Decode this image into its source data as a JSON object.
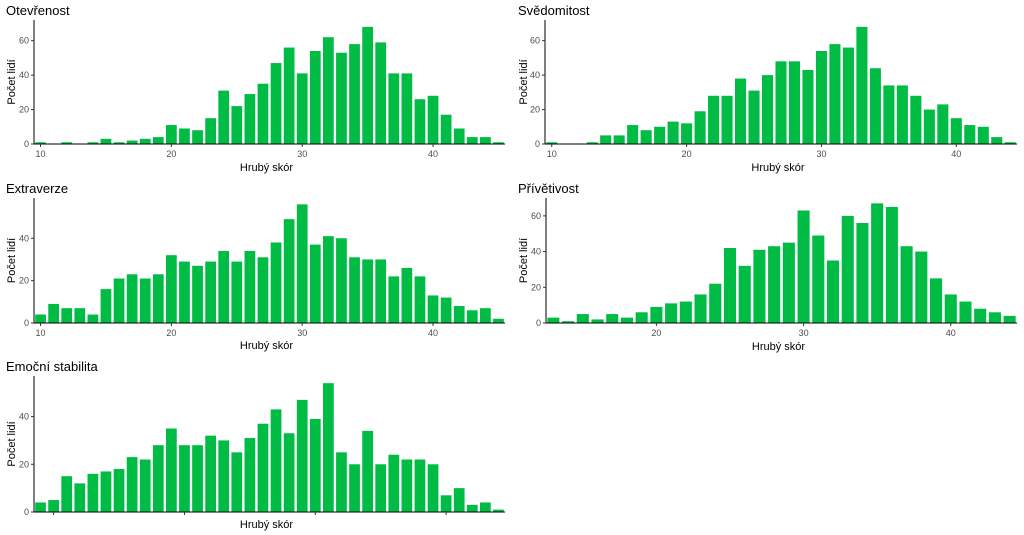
{
  "chart_data": [
    {
      "type": "bar",
      "title": "Otevřenost",
      "xlabel": "Hrubý skór",
      "ylabel": "Počet lidí",
      "x": [
        10,
        11,
        12,
        13,
        14,
        15,
        16,
        17,
        18,
        19,
        20,
        21,
        22,
        23,
        24,
        25,
        26,
        27,
        28,
        29,
        30,
        31,
        32,
        33,
        34,
        35,
        36,
        37,
        38,
        39,
        40,
        41,
        42,
        43,
        44,
        45
      ],
      "values": [
        1,
        0,
        1,
        0,
        1,
        3,
        1,
        2,
        3,
        4,
        11,
        9,
        8,
        15,
        31,
        22,
        29,
        35,
        47,
        56,
        41,
        54,
        62,
        53,
        58,
        68,
        59,
        41,
        41,
        26,
        28,
        17,
        9,
        4,
        4,
        1
      ],
      "xlim": [
        9.5,
        45.5
      ],
      "ylim": [
        0,
        72
      ],
      "xticks": [
        10,
        20,
        30,
        40
      ],
      "yticks": [
        0,
        20,
        40,
        60
      ],
      "grid": false,
      "bar_color": "#00bb44"
    },
    {
      "type": "bar",
      "title": "Svědomitost",
      "xlabel": "Hrubý skór",
      "ylabel": "Počet lidí",
      "x": [
        10,
        11,
        12,
        13,
        14,
        15,
        16,
        17,
        18,
        19,
        20,
        21,
        22,
        23,
        24,
        25,
        26,
        27,
        28,
        29,
        30,
        31,
        32,
        33,
        34,
        35,
        36,
        37,
        38,
        39,
        40,
        41,
        42,
        43,
        44
      ],
      "values": [
        1,
        0,
        0,
        1,
        5,
        5,
        11,
        8,
        10,
        13,
        12,
        19,
        28,
        28,
        38,
        31,
        40,
        48,
        48,
        43,
        54,
        58,
        56,
        68,
        44,
        34,
        34,
        28,
        20,
        23,
        15,
        11,
        10,
        4,
        1
      ],
      "xlim": [
        9.5,
        44.5
      ],
      "ylim": [
        0,
        72
      ],
      "xticks": [
        10,
        20,
        30,
        40
      ],
      "yticks": [
        0,
        20,
        40,
        60
      ],
      "grid": false,
      "bar_color": "#00bb44"
    },
    {
      "type": "bar",
      "title": "Extraverze",
      "xlabel": "Hrubý skór",
      "ylabel": "Počet lidí",
      "x": [
        10,
        11,
        12,
        13,
        14,
        15,
        16,
        17,
        18,
        19,
        20,
        21,
        22,
        23,
        24,
        25,
        26,
        27,
        28,
        29,
        30,
        31,
        32,
        33,
        34,
        35,
        36,
        37,
        38,
        39,
        40,
        41,
        42,
        43,
        44,
        45
      ],
      "values": [
        4,
        9,
        7,
        7,
        4,
        16,
        21,
        23,
        21,
        23,
        32,
        29,
        27,
        29,
        34,
        29,
        34,
        31,
        38,
        49,
        56,
        37,
        41,
        40,
        31,
        30,
        30,
        22,
        26,
        22,
        13,
        12,
        8,
        6,
        7,
        2
      ],
      "xlim": [
        9.5,
        45.5
      ],
      "ylim": [
        0,
        59
      ],
      "xticks": [
        10,
        20,
        30,
        40
      ],
      "yticks": [
        0,
        20,
        40
      ],
      "grid": false,
      "bar_color": "#00bb44"
    },
    {
      "type": "bar",
      "title": "Přívětivost",
      "xlabel": "Hrubý skór",
      "ylabel": "Počet lidí",
      "x": [
        13,
        14,
        15,
        16,
        17,
        18,
        19,
        20,
        21,
        22,
        23,
        24,
        25,
        26,
        27,
        28,
        29,
        30,
        31,
        32,
        33,
        34,
        35,
        36,
        37,
        38,
        39,
        40,
        41,
        42,
        43,
        44
      ],
      "values": [
        3,
        1,
        5,
        2,
        5,
        3,
        6,
        9,
        11,
        12,
        16,
        22,
        42,
        32,
        41,
        43,
        45,
        63,
        49,
        35,
        60,
        56,
        67,
        65,
        43,
        40,
        25,
        16,
        12,
        8,
        6,
        4
      ],
      "xlim": [
        12.5,
        44.5
      ],
      "ylim": [
        0,
        70
      ],
      "xticks": [
        20,
        30,
        40
      ],
      "yticks": [
        0,
        20,
        40,
        60
      ],
      "grid": false,
      "bar_color": "#00bb44"
    },
    {
      "type": "bar",
      "title": "Emoční stabilita",
      "xlabel": "Hrubý skór",
      "ylabel": "Počet lidí",
      "x": [
        9,
        10,
        11,
        12,
        13,
        14,
        15,
        16,
        17,
        18,
        19,
        20,
        21,
        22,
        23,
        24,
        25,
        26,
        27,
        28,
        29,
        30,
        31,
        32,
        33,
        34,
        35,
        36,
        37,
        38,
        39,
        40,
        41,
        42,
        43,
        44
      ],
      "values": [
        4,
        5,
        15,
        12,
        16,
        17,
        18,
        23,
        22,
        28,
        35,
        28,
        28,
        32,
        30,
        25,
        31,
        37,
        43,
        33,
        47,
        39,
        54,
        25,
        20,
        34,
        20,
        24,
        22,
        22,
        20,
        7,
        10,
        3,
        4,
        1
      ],
      "xlim": [
        8.5,
        44.5
      ],
      "ylim": [
        0,
        57
      ],
      "xticks": [
        10,
        20,
        30,
        40
      ],
      "yticks": [
        0,
        20,
        40
      ],
      "show_xtick_labels": false,
      "grid": false,
      "bar_color": "#00bb44"
    }
  ]
}
